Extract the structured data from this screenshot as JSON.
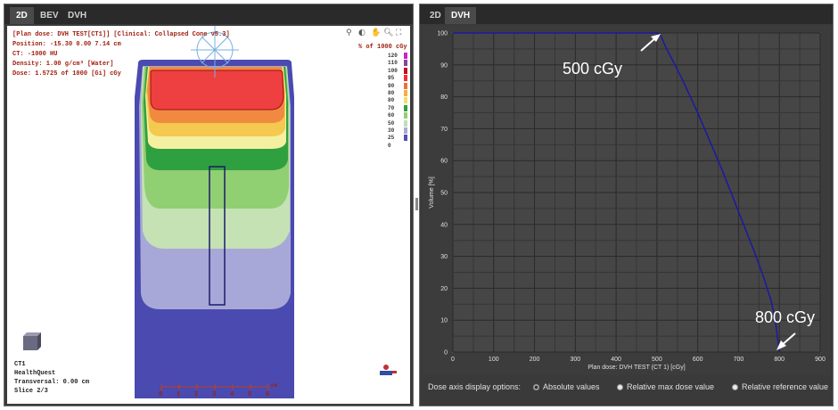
{
  "left_tabs": [
    "2D",
    "BEV",
    "DVH"
  ],
  "right_tabs": [
    "2D",
    "DVH"
  ],
  "left_active_tab": "2D",
  "right_active_tab": "DVH",
  "info_lines": [
    "[Plan dose: DVH TEST[CT1]] [Clinical: Collapsed Cone v5.3]",
    "Position: -15.30 0.00 7.14 cm",
    "CT: -1000 HU",
    "Density: 1.00 g/cm³ [Water]",
    "Dose: 1.5725 of 1000 [Gi] cGy"
  ],
  "legend_title": "% of 1000 cGy",
  "legend": [
    {
      "label": "120",
      "color": "#d020c0"
    },
    {
      "label": "110",
      "color": "#9040a0"
    },
    {
      "label": "100",
      "color": "#c01020"
    },
    {
      "label": "95",
      "color": "#ee3030"
    },
    {
      "label": "90",
      "color": "#f07030"
    },
    {
      "label": "80",
      "color": "#f5b040"
    },
    {
      "label": "80",
      "color": "#f0e060"
    },
    {
      "label": "70",
      "color": "#30a040"
    },
    {
      "label": "60",
      "color": "#90d070"
    },
    {
      "label": "50",
      "color": "#c0e0b0"
    },
    {
      "label": "30",
      "color": "#a8a8d8"
    },
    {
      "label": "25",
      "color": "#5050b0"
    },
    {
      "label": "0",
      "color": "#ffffff"
    }
  ],
  "corner_lines": [
    "CT1",
    "HealthQuest",
    "Transversal: 0.00 cm",
    "Slice 2/3"
  ],
  "scale_numbers": [
    "0",
    "1",
    "2",
    "3",
    "4",
    "5",
    "6"
  ],
  "scale_unit": "cm",
  "chart_data": {
    "type": "line",
    "xlabel": "Plan dose: DVH TEST (CT 1) [cGy]",
    "ylabel": "Volume [%]",
    "xlim": [
      0,
      900
    ],
    "ylim": [
      0,
      100
    ],
    "xticks": [
      0,
      100,
      200,
      300,
      400,
      500,
      600,
      700,
      800,
      900
    ],
    "yticks": [
      0,
      10,
      20,
      30,
      40,
      50,
      60,
      70,
      80,
      90,
      100
    ],
    "grid": true,
    "series": [
      {
        "color": "#1a1aa0",
        "x": [
          0,
          500,
          510,
          520,
          540,
          560,
          580,
          600,
          620,
          640,
          660,
          680,
          700,
          720,
          740,
          760,
          780,
          790,
          795,
          800
        ],
        "y": [
          100,
          100,
          99,
          96,
          91,
          86,
          80.5,
          75,
          69,
          63,
          57,
          50.5,
          44,
          37.5,
          31,
          24,
          16,
          10,
          5,
          0
        ]
      }
    ]
  },
  "annotations": [
    {
      "text": "500 cGy"
    },
    {
      "text": "800 cGy"
    }
  ],
  "dose_options_label": "Dose axis display options:",
  "dose_options": [
    {
      "label": "Absolute values",
      "selected": true
    },
    {
      "label": "Relative max dose value",
      "selected": false
    },
    {
      "label": "Relative reference value",
      "selected": false
    }
  ]
}
